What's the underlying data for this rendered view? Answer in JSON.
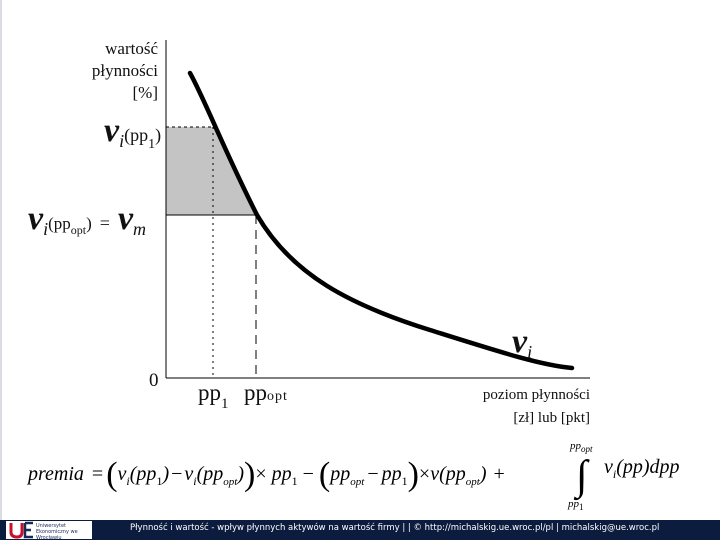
{
  "axis": {
    "y_label_line1": "wartość",
    "y_label_line2": "płynności",
    "y_label_unit": "[%]",
    "x_label_line1": "poziom płynności",
    "x_label_line2": "[zł] lub [pkt]",
    "origin": "0"
  },
  "labels": {
    "vi_pp1_symbol": "v",
    "vi_pp1_sub": "i",
    "vi_pp1_arg": "(pp",
    "vi_pp1_arg_sub": "1",
    "vi_pp1_close": ")",
    "vi_ppopt_symbol": "v",
    "vi_ppopt_sub": "i",
    "vi_ppopt_arg": "(pp",
    "vi_ppopt_arg_sub": "opt",
    "vi_ppopt_close": ")",
    "equals": "=",
    "vm_symbol": "v",
    "vm_sub": "m",
    "curve_symbol": "v",
    "curve_sub": "i",
    "pp1": "pp",
    "pp1_sub": "1",
    "ppopt": "pp",
    "ppopt_sub": "opt"
  },
  "formula": {
    "lhs": "premia",
    "eq": "=",
    "t1_open": "(",
    "t1_v": "v",
    "t1_v_sub": "i",
    "t1_arg": "(pp",
    "t1_arg_sub": "1",
    "t1_arg_close": ")",
    "t1_minus": "−",
    "t2_v": "v",
    "t2_v_sub": "i",
    "t2_arg": "(pp",
    "t2_arg_sub": "opt",
    "t2_arg_close": ")",
    "t2_close": ")",
    "times1": "×",
    "pp1": "pp",
    "pp1_sub": "1",
    "minus2": "−",
    "t3_open": "(",
    "t3_pp": "pp",
    "t3_pp_sub": "opt",
    "t3_minus": "−",
    "t3_pp1": "pp",
    "t3_pp1_sub": "1",
    "t3_close": ")",
    "times2": "×",
    "v_of": "v",
    "v_arg": "(pp",
    "v_arg_sub": "opt",
    "v_arg_close": ")",
    "plus": "+",
    "int_upper": "pp",
    "int_upper_sub": "opt",
    "int_lower": "pp",
    "int_lower_sub": "1",
    "integrand_v": "v",
    "integrand_sub": "i",
    "integrand_rest": "(pp)dpp"
  },
  "footer": {
    "text": "Płynność i wartość - wpływ płynnych aktywów na wartość firmy | | © http://michalskig.ue.wroc.pl/pl | michalskig@ue.wroc.pl",
    "logo_text": "Uniwersytet Ekonomiczny we Wrocławiu"
  },
  "colors": {
    "shaded_area": "#c4c4c4",
    "footer_bg": "#0c1c3f",
    "logo_red": "#c8102e",
    "logo_blue": "#1b2a55"
  }
}
